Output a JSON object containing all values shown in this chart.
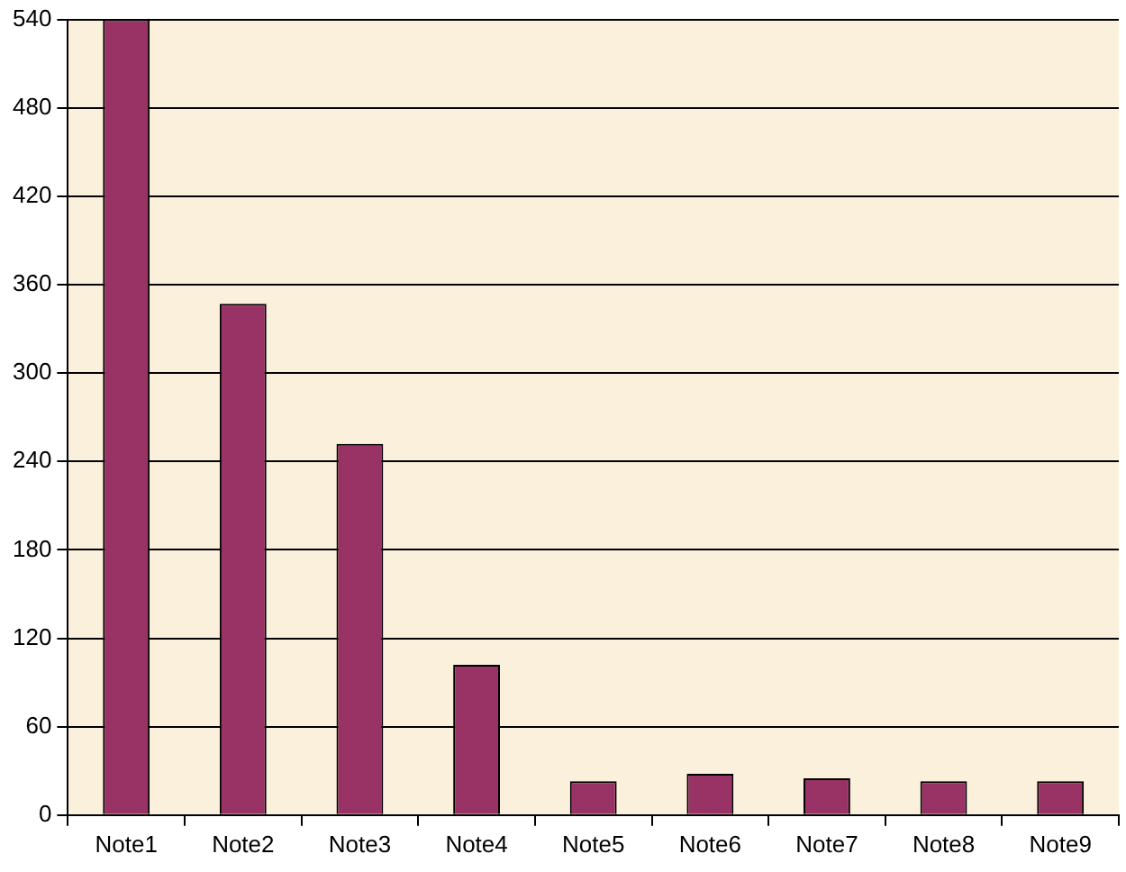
{
  "chart_data": {
    "type": "bar",
    "categories": [
      "Note1",
      "Note2",
      "Note3",
      "Note4",
      "Note5",
      "Note6",
      "Note7",
      "Note8",
      "Note9"
    ],
    "values": [
      540,
      347,
      252,
      102,
      23,
      28,
      25,
      23,
      23
    ],
    "color": "#993366",
    "ylim": [
      0,
      540
    ],
    "yticks": [
      0,
      60,
      120,
      180,
      240,
      300,
      360,
      420,
      480,
      540
    ],
    "grid": "y"
  }
}
